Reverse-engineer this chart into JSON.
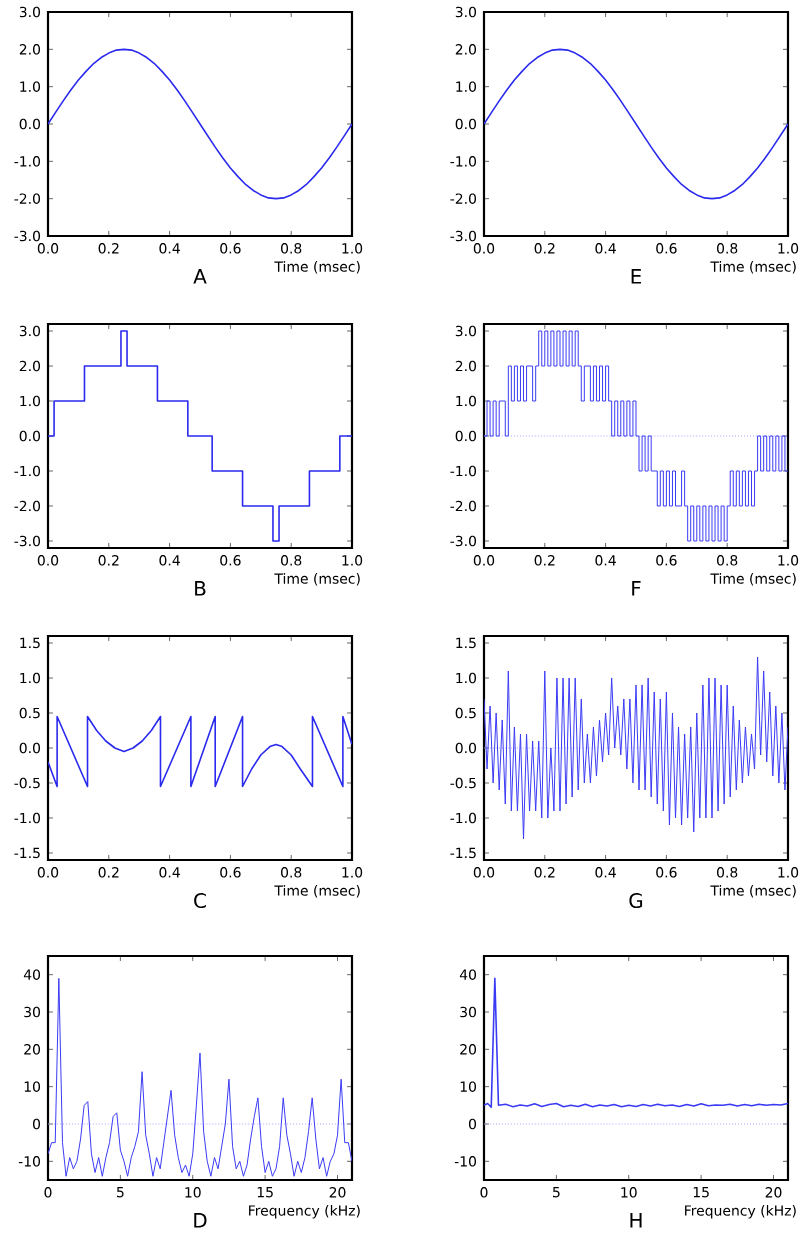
{
  "chart_data": [
    {
      "type": "line",
      "xlabel": "Time (msec)",
      "annotations": [
        "A"
      ],
      "xlim": [
        0,
        1
      ],
      "ylim": [
        -3,
        3
      ],
      "xticks": [
        {
          "value": 0,
          "label": "0.0"
        },
        {
          "value": 0.2,
          "label": "0.2"
        },
        {
          "value": 0.4,
          "label": "0.4"
        },
        {
          "value": 0.6,
          "label": "0.6"
        },
        {
          "value": 0.8,
          "label": "0.8"
        },
        {
          "value": 1,
          "label": "1.0"
        }
      ],
      "yticks": [
        {
          "value": -3,
          "label": "-3.0"
        },
        {
          "value": -2,
          "label": "-2.0"
        },
        {
          "value": -1,
          "label": "-1.0"
        },
        {
          "value": 0,
          "label": "0.0"
        },
        {
          "value": 1,
          "label": "1.0"
        },
        {
          "value": 2,
          "label": "2.0"
        },
        {
          "value": 3,
          "label": "3.0"
        }
      ],
      "color": "#2a2aee",
      "x": [
        0,
        0.025,
        0.05,
        0.075,
        0.1,
        0.125,
        0.15,
        0.175,
        0.2,
        0.225,
        0.25,
        0.275,
        0.3,
        0.325,
        0.35,
        0.375,
        0.4,
        0.425,
        0.45,
        0.475,
        0.5,
        0.525,
        0.55,
        0.575,
        0.6,
        0.625,
        0.65,
        0.675,
        0.7,
        0.725,
        0.75,
        0.775,
        0.8,
        0.825,
        0.85,
        0.875,
        0.9,
        0.925,
        0.95,
        0.975,
        1
      ],
      "values": [
        0,
        0.31,
        0.62,
        0.91,
        1.18,
        1.41,
        1.62,
        1.78,
        1.9,
        1.98,
        2.0,
        1.98,
        1.9,
        1.78,
        1.62,
        1.41,
        1.18,
        0.91,
        0.62,
        0.31,
        0,
        -0.31,
        -0.62,
        -0.91,
        -1.18,
        -1.41,
        -1.62,
        -1.78,
        -1.9,
        -1.98,
        -2.0,
        -1.98,
        -1.9,
        -1.78,
        -1.62,
        -1.41,
        -1.18,
        -0.91,
        -0.62,
        -0.31,
        0
      ]
    },
    {
      "type": "line",
      "xlabel": "Time (msec)",
      "annotations": [
        "E"
      ],
      "xlim": [
        0,
        1
      ],
      "ylim": [
        -3,
        3
      ],
      "xticks": [
        {
          "value": 0,
          "label": "0.0"
        },
        {
          "value": 0.2,
          "label": "0.2"
        },
        {
          "value": 0.4,
          "label": "0.4"
        },
        {
          "value": 0.6,
          "label": "0.6"
        },
        {
          "value": 0.8,
          "label": "0.8"
        },
        {
          "value": 1,
          "label": "1.0"
        }
      ],
      "yticks": [
        {
          "value": -3,
          "label": "-3.0"
        },
        {
          "value": -2,
          "label": "-2.0"
        },
        {
          "value": -1,
          "label": "-1.0"
        },
        {
          "value": 0,
          "label": "0.0"
        },
        {
          "value": 1,
          "label": "1.0"
        },
        {
          "value": 2,
          "label": "2.0"
        },
        {
          "value": 3,
          "label": "3.0"
        }
      ],
      "color": "#2a2aee",
      "x": [
        0,
        0.025,
        0.05,
        0.075,
        0.1,
        0.125,
        0.15,
        0.175,
        0.2,
        0.225,
        0.25,
        0.275,
        0.3,
        0.325,
        0.35,
        0.375,
        0.4,
        0.425,
        0.45,
        0.475,
        0.5,
        0.525,
        0.55,
        0.575,
        0.6,
        0.625,
        0.65,
        0.675,
        0.7,
        0.725,
        0.75,
        0.775,
        0.8,
        0.825,
        0.85,
        0.875,
        0.9,
        0.925,
        0.95,
        0.975,
        1
      ],
      "values": [
        0,
        0.31,
        0.62,
        0.91,
        1.18,
        1.41,
        1.62,
        1.78,
        1.9,
        1.98,
        2.0,
        1.98,
        1.9,
        1.78,
        1.62,
        1.41,
        1.18,
        0.91,
        0.62,
        0.31,
        0,
        -0.31,
        -0.62,
        -0.91,
        -1.18,
        -1.41,
        -1.62,
        -1.78,
        -1.9,
        -1.98,
        -2.0,
        -1.98,
        -1.9,
        -1.78,
        -1.62,
        -1.41,
        -1.18,
        -0.91,
        -0.62,
        -0.31,
        0
      ]
    },
    {
      "type": "step",
      "xlabel": "Time (msec)",
      "annotations": [
        "B"
      ],
      "xlim": [
        0,
        1
      ],
      "ylim": [
        -3.2,
        3.2
      ],
      "xticks": [
        {
          "value": 0,
          "label": "0.0"
        },
        {
          "value": 0.2,
          "label": "0.2"
        },
        {
          "value": 0.4,
          "label": "0.4"
        },
        {
          "value": 0.6,
          "label": "0.6"
        },
        {
          "value": 0.8,
          "label": "0.8"
        },
        {
          "value": 1,
          "label": "1.0"
        }
      ],
      "yticks": [
        {
          "value": -3,
          "label": "-3.0"
        },
        {
          "value": -2,
          "label": "-2.0"
        },
        {
          "value": -1,
          "label": "-1.0"
        },
        {
          "value": 0,
          "label": "0.0"
        },
        {
          "value": 1,
          "label": "1.0"
        },
        {
          "value": 2,
          "label": "2.0"
        },
        {
          "value": 3,
          "label": "3.0"
        }
      ],
      "color": "#2a2aee",
      "x": [
        0,
        0.02,
        0.12,
        0.24,
        0.26,
        0.36,
        0.46,
        0.54,
        0.64,
        0.74,
        0.76,
        0.86,
        0.96,
        1.0
      ],
      "values": [
        0,
        1,
        2,
        3,
        2,
        1,
        0,
        -1,
        -2,
        -3,
        -2,
        -1,
        0,
        0
      ]
    },
    {
      "type": "step",
      "xlabel": "Time (msec)",
      "annotations": [
        "F"
      ],
      "xlim": [
        0,
        1
      ],
      "ylim": [
        -3.2,
        3.2
      ],
      "xticks": [
        {
          "value": 0,
          "label": "0.0"
        },
        {
          "value": 0.2,
          "label": "0.2"
        },
        {
          "value": 0.4,
          "label": "0.4"
        },
        {
          "value": 0.6,
          "label": "0.6"
        },
        {
          "value": 0.8,
          "label": "0.8"
        },
        {
          "value": 1,
          "label": "1.0"
        }
      ],
      "yticks": [
        {
          "value": -3,
          "label": "-3.0"
        },
        {
          "value": -2,
          "label": "-2.0"
        },
        {
          "value": -1,
          "label": "-1.0"
        },
        {
          "value": 0,
          "label": "0.0"
        },
        {
          "value": 1,
          "label": "1.0"
        },
        {
          "value": 2,
          "label": "2.0"
        },
        {
          "value": 3,
          "label": "3.0"
        }
      ],
      "color": "#3a3af5",
      "ref_lines": [
        {
          "axis": "y",
          "value": 0,
          "color": "#a8a8ff",
          "line_style": "dotted"
        }
      ],
      "x": [
        0,
        0.01,
        0.02,
        0.03,
        0.04,
        0.05,
        0.06,
        0.07,
        0.08,
        0.09,
        0.1,
        0.11,
        0.12,
        0.13,
        0.14,
        0.15,
        0.16,
        0.17,
        0.18,
        0.19,
        0.2,
        0.21,
        0.22,
        0.23,
        0.24,
        0.25,
        0.26,
        0.27,
        0.28,
        0.29,
        0.3,
        0.31,
        0.32,
        0.33,
        0.34,
        0.35,
        0.36,
        0.37,
        0.38,
        0.39,
        0.4,
        0.41,
        0.42,
        0.43,
        0.44,
        0.45,
        0.46,
        0.47,
        0.48,
        0.49,
        0.5,
        0.51,
        0.52,
        0.53,
        0.54,
        0.55,
        0.56,
        0.57,
        0.58,
        0.59,
        0.6,
        0.61,
        0.62,
        0.63,
        0.64,
        0.65,
        0.66,
        0.67,
        0.68,
        0.69,
        0.7,
        0.71,
        0.72,
        0.73,
        0.74,
        0.75,
        0.76,
        0.77,
        0.78,
        0.79,
        0.8,
        0.81,
        0.82,
        0.83,
        0.84,
        0.85,
        0.86,
        0.87,
        0.88,
        0.89,
        0.9,
        0.91,
        0.92,
        0.93,
        0.94,
        0.95,
        0.96,
        0.97,
        0.98,
        0.99,
        1.0
      ],
      "values": [
        0,
        1,
        0,
        1,
        0,
        1,
        1,
        0,
        2,
        1,
        2,
        1,
        2,
        1,
        2,
        2,
        1,
        2,
        3,
        2,
        3,
        2,
        3,
        2,
        3,
        2,
        3,
        2,
        3,
        2,
        3,
        2,
        1,
        2,
        2,
        1,
        2,
        1,
        2,
        1,
        2,
        1,
        0,
        1,
        0,
        1,
        0,
        1,
        0,
        1,
        0,
        -1,
        0,
        -1,
        0,
        -1,
        -1,
        -2,
        -1,
        -2,
        -1,
        -2,
        -1,
        -2,
        -2,
        -1,
        -2,
        -3,
        -2,
        -3,
        -2,
        -3,
        -2,
        -3,
        -2,
        -3,
        -2,
        -3,
        -2,
        -3,
        -2,
        -1,
        -2,
        -1,
        -2,
        -1,
        -2,
        -1,
        -2,
        -1,
        0,
        -1,
        0,
        -1,
        0,
        -1,
        0,
        -1,
        0,
        -1,
        -1
      ]
    },
    {
      "type": "line",
      "xlabel": "Time (msec)",
      "annotations": [
        "C"
      ],
      "xlim": [
        0,
        1
      ],
      "ylim": [
        -1.6,
        1.6
      ],
      "xticks": [
        {
          "value": 0,
          "label": "0.0"
        },
        {
          "value": 0.2,
          "label": "0.2"
        },
        {
          "value": 0.4,
          "label": "0.4"
        },
        {
          "value": 0.6,
          "label": "0.6"
        },
        {
          "value": 0.8,
          "label": "0.8"
        },
        {
          "value": 1,
          "label": "1.0"
        }
      ],
      "yticks": [
        {
          "value": -1.5,
          "label": "-1.5"
        },
        {
          "value": -1,
          "label": "-1.0"
        },
        {
          "value": -0.5,
          "label": "-0.5"
        },
        {
          "value": 0,
          "label": "0.0"
        },
        {
          "value": 0.5,
          "label": "0.5"
        },
        {
          "value": 1,
          "label": "1.0"
        },
        {
          "value": 1.5,
          "label": "1.5"
        }
      ],
      "color": "#2a2aee",
      "x": [
        0,
        0.03,
        0.03,
        0.13,
        0.13,
        0.16,
        0.19,
        0.22,
        0.25,
        0.28,
        0.31,
        0.34,
        0.37,
        0.37,
        0.47,
        0.47,
        0.55,
        0.55,
        0.64,
        0.64,
        0.67,
        0.7,
        0.73,
        0.75,
        0.77,
        0.8,
        0.83,
        0.87,
        0.87,
        0.97,
        0.97,
        1.0
      ],
      "values": [
        -0.2,
        -0.55,
        0.45,
        -0.55,
        0.45,
        0.25,
        0.1,
        0,
        -0.05,
        0,
        0.1,
        0.25,
        0.45,
        -0.55,
        0.45,
        -0.55,
        0.45,
        -0.55,
        0.45,
        -0.55,
        -0.3,
        -0.1,
        0.02,
        0.05,
        0.02,
        -0.1,
        -0.3,
        -0.55,
        0.45,
        -0.55,
        0.45,
        0.05
      ]
    },
    {
      "type": "line",
      "xlabel": "Time (msec)",
      "annotations": [
        "G"
      ],
      "xlim": [
        0,
        1
      ],
      "ylim": [
        -1.6,
        1.6
      ],
      "xticks": [
        {
          "value": 0,
          "label": "0.0"
        },
        {
          "value": 0.2,
          "label": "0.2"
        },
        {
          "value": 0.4,
          "label": "0.4"
        },
        {
          "value": 0.6,
          "label": "0.6"
        },
        {
          "value": 0.8,
          "label": "0.8"
        },
        {
          "value": 1,
          "label": "1.0"
        }
      ],
      "yticks": [
        {
          "value": -1.5,
          "label": "-1.5"
        },
        {
          "value": -1,
          "label": "-1.0"
        },
        {
          "value": -0.5,
          "label": "-0.5"
        },
        {
          "value": 0,
          "label": "0.0"
        },
        {
          "value": 0.5,
          "label": "0.5"
        },
        {
          "value": 1,
          "label": "1.0"
        },
        {
          "value": 1.5,
          "label": "1.5"
        }
      ],
      "color": "#3a3af5",
      "ref_lines": [
        {
          "axis": "y",
          "value": 0,
          "color": "#a8a8ff",
          "line_style": "dotted"
        }
      ],
      "x": [
        0,
        0.01,
        0.02,
        0.03,
        0.04,
        0.05,
        0.06,
        0.07,
        0.08,
        0.09,
        0.1,
        0.11,
        0.12,
        0.13,
        0.14,
        0.15,
        0.16,
        0.17,
        0.18,
        0.19,
        0.2,
        0.21,
        0.22,
        0.23,
        0.24,
        0.25,
        0.26,
        0.27,
        0.28,
        0.29,
        0.3,
        0.31,
        0.32,
        0.33,
        0.34,
        0.35,
        0.36,
        0.37,
        0.38,
        0.39,
        0.4,
        0.41,
        0.42,
        0.43,
        0.44,
        0.45,
        0.46,
        0.47,
        0.48,
        0.49,
        0.5,
        0.51,
        0.52,
        0.53,
        0.54,
        0.55,
        0.56,
        0.57,
        0.58,
        0.59,
        0.6,
        0.61,
        0.62,
        0.63,
        0.64,
        0.65,
        0.66,
        0.67,
        0.68,
        0.69,
        0.7,
        0.71,
        0.72,
        0.73,
        0.74,
        0.75,
        0.76,
        0.77,
        0.78,
        0.79,
        0.8,
        0.81,
        0.82,
        0.83,
        0.84,
        0.85,
        0.86,
        0.87,
        0.88,
        0.89,
        0.9,
        0.91,
        0.92,
        0.93,
        0.94,
        0.95,
        0.96,
        0.97,
        0.98,
        0.99,
        1.0
      ],
      "values": [
        0.7,
        -0.3,
        0.6,
        -0.5,
        0.5,
        -0.6,
        0.4,
        -0.8,
        1.1,
        -0.9,
        0.3,
        -0.9,
        0.2,
        -1.3,
        0.2,
        -0.9,
        0.1,
        -0.9,
        0.1,
        -1.0,
        1.1,
        -1.0,
        0.0,
        -0.9,
        1.0,
        -0.9,
        1.0,
        -0.8,
        1.0,
        -0.7,
        1.0,
        -0.6,
        0.7,
        -0.5,
        0.2,
        -0.5,
        0.3,
        -0.4,
        0.4,
        -0.2,
        0.5,
        -0.1,
        1.0,
        0.0,
        0.6,
        -0.1,
        0.7,
        -0.3,
        0.7,
        -0.5,
        0.9,
        -0.6,
        0.9,
        -0.6,
        1.0,
        -0.7,
        0.8,
        -0.8,
        0.7,
        -0.9,
        0.8,
        -1.1,
        0.5,
        -1.0,
        0.3,
        -1.1,
        0.2,
        -1.0,
        0.3,
        -1.2,
        0.5,
        -1.0,
        0.9,
        -1.0,
        1.0,
        -1.0,
        1.0,
        -0.9,
        0.9,
        -0.8,
        0.9,
        -0.7,
        0.6,
        -0.6,
        0.4,
        -0.5,
        0.3,
        -0.4,
        0.2,
        -0.3,
        1.3,
        -0.1,
        1.1,
        -0.2,
        0.8,
        -0.4,
        0.6,
        -0.5,
        0.5,
        -0.6,
        0.3
      ]
    },
    {
      "type": "line",
      "xlabel": "Frequency (kHz)",
      "annotations": [
        "D"
      ],
      "xlim": [
        0,
        21
      ],
      "ylim": [
        -15,
        45
      ],
      "xticks": [
        0,
        5,
        10,
        15,
        20
      ],
      "yticks": [
        -10,
        0,
        10,
        20,
        30,
        40
      ],
      "color": "#3a3af5",
      "ref_lines": [
        {
          "axis": "y",
          "value": 0,
          "color": "#a8a8ff",
          "line_style": "dotted"
        }
      ],
      "x": [
        0,
        0.25,
        0.5,
        0.75,
        1,
        1.25,
        1.5,
        1.75,
        2,
        2.25,
        2.5,
        2.75,
        3,
        3.25,
        3.5,
        3.75,
        4,
        4.25,
        4.5,
        4.75,
        5,
        5.25,
        5.5,
        5.75,
        6,
        6.25,
        6.5,
        6.75,
        7,
        7.25,
        7.5,
        7.75,
        8,
        8.25,
        8.5,
        8.75,
        9,
        9.25,
        9.5,
        9.75,
        10,
        10.25,
        10.5,
        10.75,
        11,
        11.25,
        11.5,
        11.75,
        12,
        12.25,
        12.5,
        12.75,
        13,
        13.25,
        13.5,
        13.75,
        14,
        14.25,
        14.5,
        14.75,
        15,
        15.25,
        15.5,
        15.75,
        16,
        16.25,
        16.5,
        16.75,
        17,
        17.25,
        17.5,
        17.75,
        18,
        18.25,
        18.5,
        18.75,
        19,
        19.25,
        19.5,
        19.75,
        20,
        20.25,
        20.5,
        20.75,
        21
      ],
      "values": [
        -8,
        -5,
        -5,
        39,
        -5,
        -14,
        -9,
        -12,
        -10,
        -4,
        5,
        6,
        -8,
        -13,
        -9,
        -14,
        -9,
        -5,
        2,
        3,
        -7,
        -10,
        -14,
        -9,
        -6,
        -2,
        14,
        -3,
        -8,
        -14,
        -9,
        -12,
        -5,
        2,
        9,
        -3,
        -9,
        -13,
        -11,
        -14,
        -8,
        5,
        19,
        -2,
        -10,
        -14,
        -9,
        -12,
        -6,
        0,
        12,
        -6,
        -12,
        -10,
        -14,
        -11,
        -4,
        2,
        7,
        -6,
        -13,
        -10,
        -14,
        -12,
        -6,
        7,
        -3,
        -8,
        -14,
        -10,
        -13,
        -9,
        -2,
        7,
        -4,
        -12,
        -9,
        -14,
        -10,
        -8,
        -3,
        12,
        -5,
        -5,
        -10
      ]
    },
    {
      "type": "line",
      "xlabel": "Frequency (kHz)",
      "annotations": [
        "H"
      ],
      "xlim": [
        0,
        21
      ],
      "ylim": [
        -15,
        45
      ],
      "xticks": [
        0,
        5,
        10,
        15,
        20
      ],
      "yticks": [
        -10,
        0,
        10,
        20,
        30,
        40
      ],
      "color": "#3a3af5",
      "ref_lines": [
        {
          "axis": "y",
          "value": 0,
          "color": "#a8a8ff",
          "line_style": "dotted"
        }
      ],
      "x": [
        0,
        0.25,
        0.5,
        0.75,
        1,
        1.5,
        2,
        2.5,
        3,
        3.5,
        4,
        4.5,
        5,
        5.5,
        6,
        6.5,
        7,
        7.5,
        8,
        8.5,
        9,
        9.5,
        10,
        10.5,
        11,
        11.5,
        12,
        12.5,
        13,
        13.5,
        14,
        14.5,
        15,
        15.5,
        16,
        16.5,
        17,
        17.5,
        18,
        18.5,
        19,
        19.5,
        20,
        20.5,
        21
      ],
      "values": [
        5,
        5.5,
        4.5,
        39,
        5,
        5.3,
        4.6,
        5.1,
        4.8,
        5.4,
        4.7,
        5.2,
        5.5,
        4.6,
        5.0,
        4.7,
        5.3,
        4.6,
        5.1,
        4.8,
        5.2,
        4.6,
        5.0,
        4.7,
        5.2,
        4.8,
        5.3,
        4.9,
        5.1,
        4.7,
        5.2,
        4.8,
        5.4,
        4.9,
        5.1,
        5.0,
        5.3,
        4.8,
        5.2,
        4.9,
        5.3,
        5.0,
        5.2,
        5.1,
        5.5
      ]
    }
  ]
}
